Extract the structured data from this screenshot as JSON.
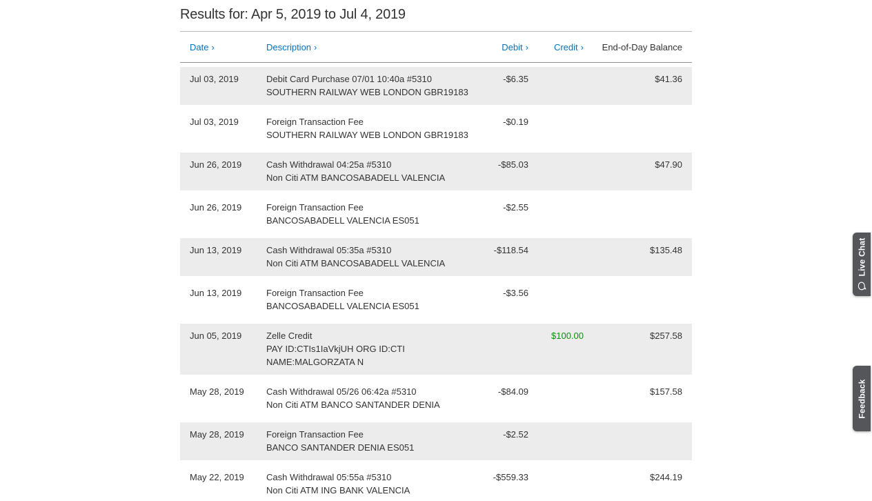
{
  "title": "Results for: Apr 5, 2019 to Jul 4, 2019",
  "colors": {
    "accent_blue": "#0672BE",
    "credit_green": "#0B8E0B",
    "row_stripe": "#ECECEC",
    "tab_gray": "#54565A",
    "text": "#333333"
  },
  "table": {
    "sort_icon": "›",
    "headers": [
      {
        "label": "Date",
        "sortable": true
      },
      {
        "label": "Description",
        "sortable": true
      },
      {
        "label": "Debit",
        "sortable": true
      },
      {
        "label": "Credit",
        "sortable": true
      },
      {
        "label": "End-of-Day Balance",
        "sortable": false
      }
    ],
    "rows": [
      {
        "date": "Jul 03, 2019",
        "description": [
          "Debit Card Purchase 07/01 10:40a #5310",
          "SOUTHERN RAILWAY WEB LONDON GBR19183"
        ],
        "debit": "-$6.35",
        "credit": "",
        "balance": "$41.36"
      },
      {
        "date": "Jul 03, 2019",
        "description": [
          "Foreign Transaction Fee",
          "SOUTHERN RAILWAY WEB LONDON GBR19183"
        ],
        "debit": "-$0.19",
        "credit": "",
        "balance": ""
      },
      {
        "date": "Jun 26, 2019",
        "description": [
          "Cash Withdrawal 04:25a #5310",
          "Non Citi ATM BANCOSABADELL VALENCIA"
        ],
        "debit": "-$85.03",
        "credit": "",
        "balance": "$47.90"
      },
      {
        "date": "Jun 26, 2019",
        "description": [
          "Foreign Transaction Fee",
          "BANCOSABADELL VALENCIA ES051"
        ],
        "debit": "-$2.55",
        "credit": "",
        "balance": ""
      },
      {
        "date": "Jun 13, 2019",
        "description": [
          "Cash Withdrawal 05:35a #5310",
          "Non Citi ATM BANCOSABADELL VALENCIA"
        ],
        "debit": "-$118.54",
        "credit": "",
        "balance": "$135.48"
      },
      {
        "date": "Jun 13, 2019",
        "description": [
          "Foreign Transaction Fee",
          "BANCOSABADELL VALENCIA ES051"
        ],
        "debit": "-$3.56",
        "credit": "",
        "balance": ""
      },
      {
        "date": "Jun 05, 2019",
        "description": [
          "Zelle Credit",
          "PAY ID:CTIs1IaVkjUH ORG ID:CTI",
          "NAME:MALGORZATA N"
        ],
        "debit": "",
        "credit": "$100.00",
        "balance": "$257.58"
      },
      {
        "date": "May 28, 2019",
        "description": [
          "Cash Withdrawal 05/26 06:42a #5310",
          "Non Citi ATM BANCO SANTANDER DENIA"
        ],
        "debit": "-$84.09",
        "credit": "",
        "balance": "$157.58"
      },
      {
        "date": "May 28, 2019",
        "description": [
          "Foreign Transaction Fee",
          "BANCO SANTANDER DENIA ES051"
        ],
        "debit": "-$2.52",
        "credit": "",
        "balance": ""
      },
      {
        "date": "May 22, 2019",
        "description": [
          "Cash Withdrawal 05:55a #5310",
          "Non Citi ATM ING BANK VALENCIA"
        ],
        "debit": "-$559.33",
        "credit": "",
        "balance": "$244.19"
      }
    ]
  },
  "side_tabs": {
    "live_chat": "Live Chat",
    "feedback": "Feedback"
  }
}
